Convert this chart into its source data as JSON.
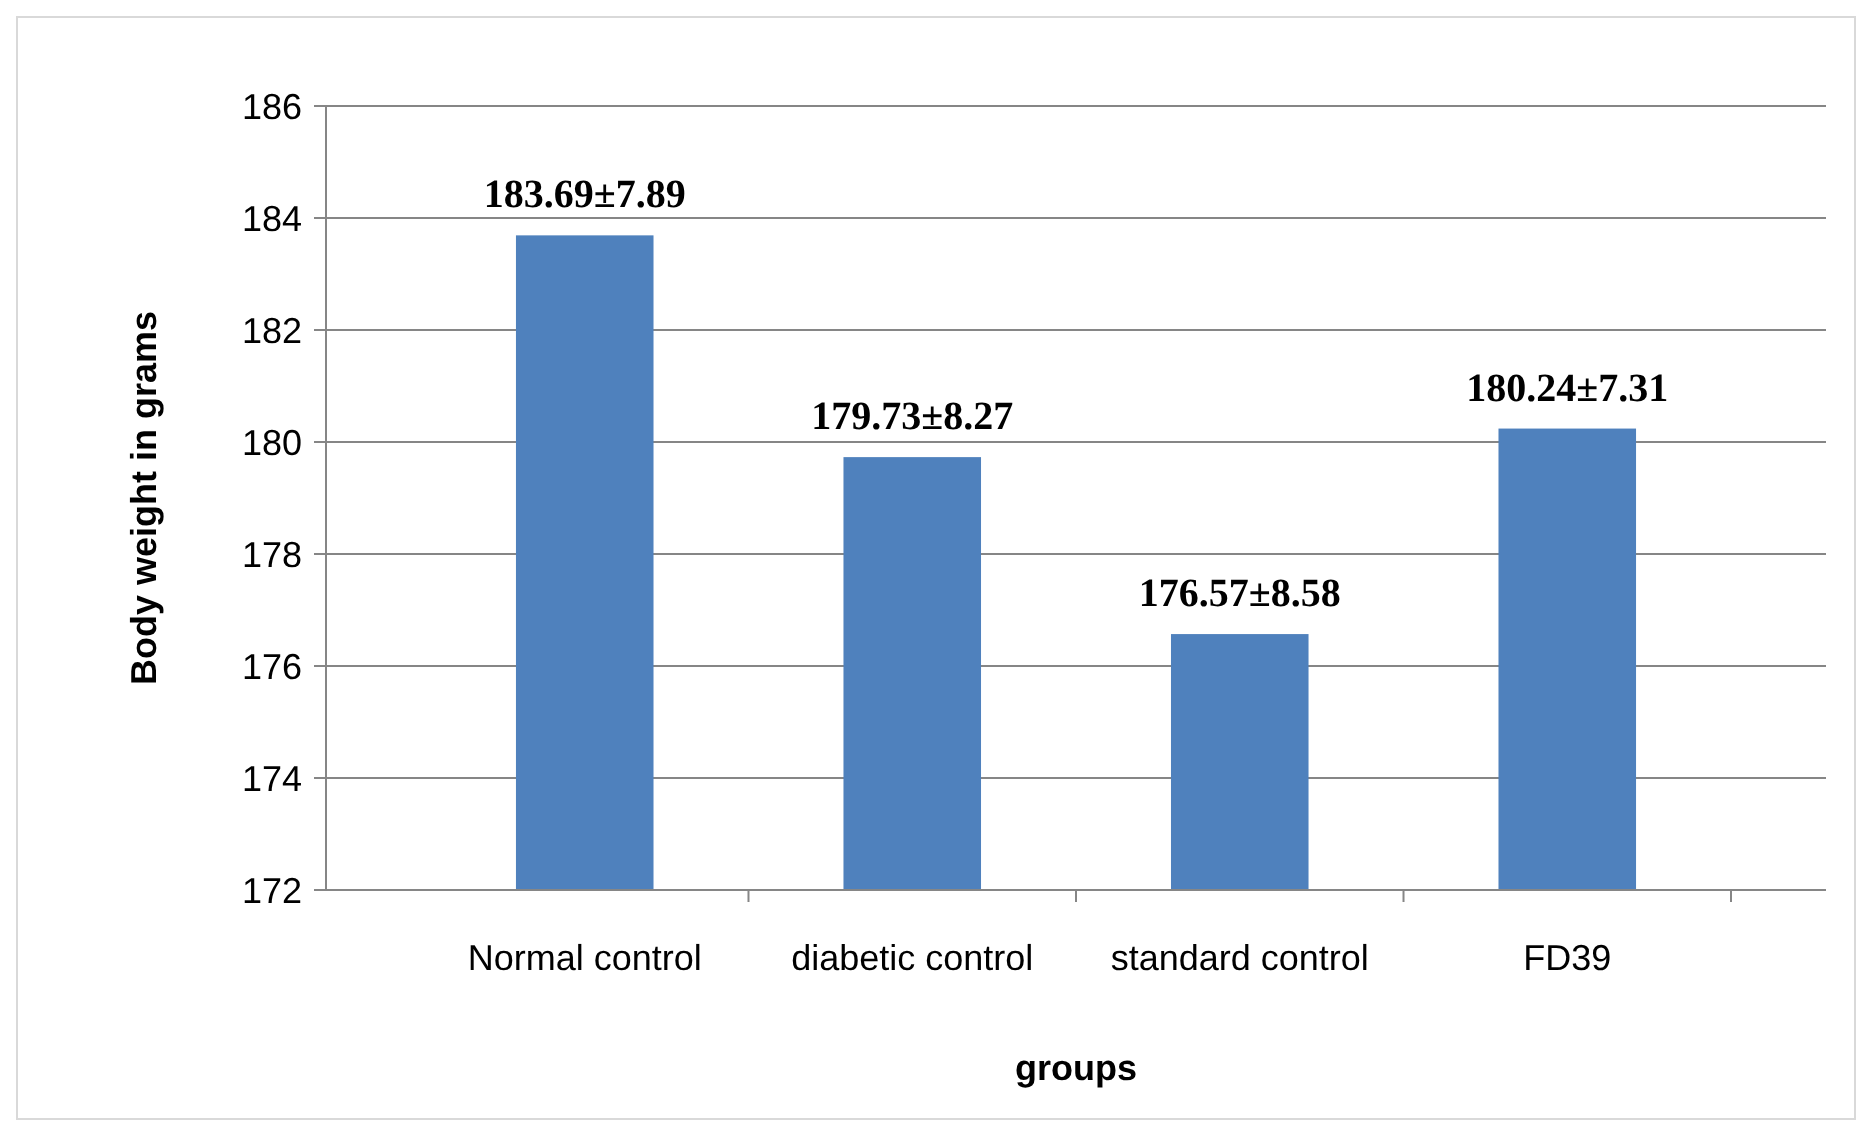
{
  "chart_data": {
    "type": "bar",
    "xlabel": "groups",
    "ylabel": "Body weight in grams",
    "categories": [
      "Normal control",
      "diabetic control",
      "standard control",
      "FD39"
    ],
    "values": [
      183.69,
      179.73,
      176.57,
      180.24
    ],
    "value_labels": [
      "183.69±7.89",
      "179.73±8.27",
      "176.57±8.58",
      "180.24±7.31"
    ],
    "color": "#4f81bd",
    "ylim": [
      172,
      186
    ],
    "yticks": [
      172,
      174,
      176,
      178,
      180,
      182,
      184,
      186
    ],
    "grid": "y"
  }
}
